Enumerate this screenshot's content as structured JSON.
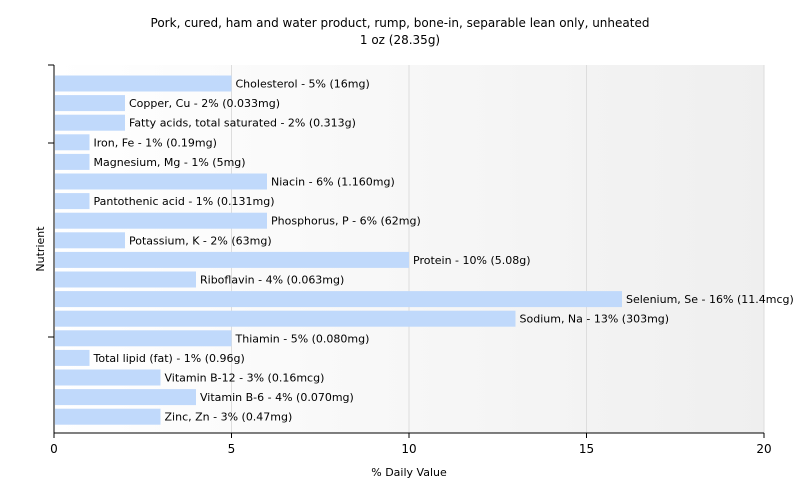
{
  "chart_data": {
    "type": "bar",
    "orientation": "horizontal",
    "title": "Pork, cured, ham and water product, rump, bone-in, separable lean only, unheated",
    "subtitle": "1 oz (28.35g)",
    "xlabel": "% Daily Value",
    "ylabel": "Nutrient",
    "xlim": [
      0,
      20
    ],
    "xticks": [
      "0",
      "5",
      "10",
      "15",
      "20"
    ],
    "grid": "vertical",
    "bar_color": "#c0d9fb",
    "categories": [
      "Cholesterol",
      "Copper, Cu",
      "Fatty acids, total saturated",
      "Iron, Fe",
      "Magnesium, Mg",
      "Niacin",
      "Pantothenic acid",
      "Phosphorus, P",
      "Potassium, K",
      "Protein",
      "Riboflavin",
      "Selenium, Se",
      "Sodium, Na",
      "Thiamin",
      "Total lipid (fat)",
      "Vitamin B-12",
      "Vitamin B-6",
      "Zinc, Zn"
    ],
    "values": [
      5,
      2,
      2,
      1,
      1,
      6,
      1,
      6,
      2,
      10,
      4,
      16,
      13,
      5,
      1,
      3,
      4,
      3
    ],
    "labels": [
      "Cholesterol - 5% (16mg)",
      "Copper, Cu - 2% (0.033mg)",
      "Fatty acids, total saturated - 2% (0.313g)",
      "Iron, Fe - 1% (0.19mg)",
      "Magnesium, Mg - 1% (5mg)",
      "Niacin - 6% (1.160mg)",
      "Pantothenic acid - 1% (0.131mg)",
      "Phosphorus, P - 6% (62mg)",
      "Potassium, K - 2% (63mg)",
      "Protein - 10% (5.08g)",
      "Riboflavin - 4% (0.063mg)",
      "Selenium, Se - 16% (11.4mcg)",
      "Sodium, Na - 13% (303mg)",
      "Thiamin - 5% (0.080mg)",
      "Total lipid (fat) - 1% (0.96g)",
      "Vitamin B-12 - 3% (0.16mcg)",
      "Vitamin B-6 - 4% (0.070mg)",
      "Zinc, Zn - 3% (0.47mg)"
    ]
  }
}
